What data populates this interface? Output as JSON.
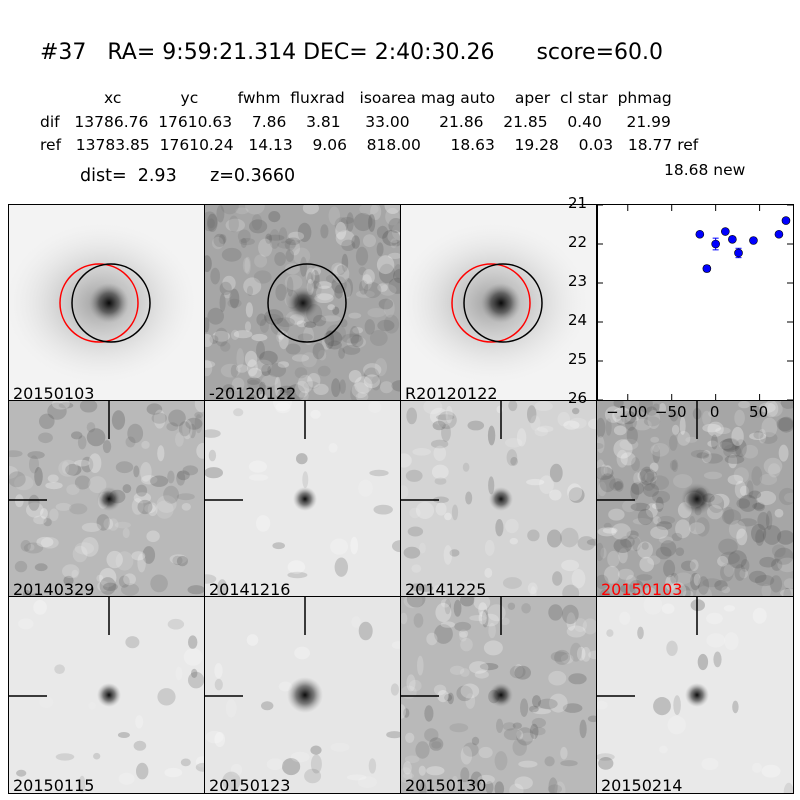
{
  "header": {
    "title": "#37   RA= 9:59:21.314 DEC= 2:40:30.26      score=60.0",
    "columns": "xc            yc        fwhm  fluxrad   isoarea mag auto    aper  cl star  phmag",
    "dif_row": "dif   13786.76  17610.63    7.86    3.81     33.00      21.86    21.85    0.40     21.99",
    "ref_row": "ref   13783.85  17610.24   14.13    9.06    818.00      18.63    19.28    0.03   18.77 ref",
    "new_mag": "18.68 new",
    "dist_line": "dist=  2.93      z=0.3660"
  },
  "panels": [
    {
      "id": "new",
      "label": "20150103",
      "label_color": "#000000",
      "style": "galaxy",
      "circles": [
        "red",
        "black"
      ]
    },
    {
      "id": "diff",
      "label": "-20120122",
      "label_color": "#000000",
      "style": "noise",
      "circles": [
        "black"
      ]
    },
    {
      "id": "ref",
      "label": "R20120122",
      "label_color": "#000000",
      "style": "galaxy",
      "circles": [
        "red",
        "black"
      ]
    },
    {
      "id": "e1",
      "label": "20140329",
      "label_color": "#000000",
      "style": "noisy-dark",
      "crosshair": true
    },
    {
      "id": "e2",
      "label": "20141216",
      "label_color": "#000000",
      "style": "clean",
      "crosshair": true
    },
    {
      "id": "e3",
      "label": "20141225",
      "label_color": "#000000",
      "style": "noisy",
      "crosshair": true
    },
    {
      "id": "e4",
      "label": "20150103",
      "label_color": "#ff0000",
      "style": "noise",
      "crosshair": true
    },
    {
      "id": "e5",
      "label": "20150115",
      "label_color": "#000000",
      "style": "clean",
      "crosshair": true
    },
    {
      "id": "e6",
      "label": "20150123",
      "label_color": "#000000",
      "style": "clean-big",
      "crosshair": true
    },
    {
      "id": "e7",
      "label": "20150130",
      "label_color": "#000000",
      "style": "noisy-dark",
      "crosshair": true
    },
    {
      "id": "e8",
      "label": "20150214",
      "label_color": "#000000",
      "style": "clean",
      "crosshair": true
    }
  ],
  "chart_data": {
    "type": "scatter",
    "title": "",
    "xlabel": "",
    "ylabel": "",
    "xlim": [
      -135,
      88
    ],
    "ylim": [
      26,
      21
    ],
    "y_inverted": true,
    "xticks": [
      -100,
      -50,
      0,
      50
    ],
    "xtick_labels": [
      "−100",
      "−50",
      "0",
      "50"
    ],
    "yticks": [
      21,
      22,
      23,
      24,
      25,
      26
    ],
    "ytick_labels": [
      "21",
      "22",
      "23",
      "24",
      "25",
      "26"
    ],
    "grid": false,
    "marker_color": "#0000ff",
    "points": [
      {
        "x": -18,
        "y": 21.75,
        "err": 0.03
      },
      {
        "x": -10,
        "y": 22.63,
        "err": 0.08
      },
      {
        "x": 0,
        "y": 22.0,
        "err": 0.15
      },
      {
        "x": 11,
        "y": 21.68,
        "err": 0.05
      },
      {
        "x": 19,
        "y": 21.88,
        "err": 0.05
      },
      {
        "x": 26,
        "y": 22.23,
        "err": 0.12
      },
      {
        "x": 43,
        "y": 21.91,
        "err": 0.05
      },
      {
        "x": 72,
        "y": 21.75,
        "err": 0.04
      },
      {
        "x": 80,
        "y": 21.4,
        "err": 0.04
      }
    ]
  }
}
